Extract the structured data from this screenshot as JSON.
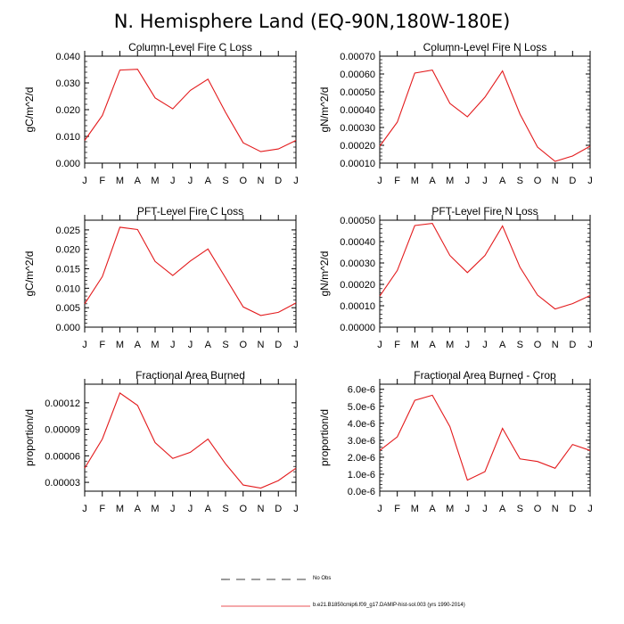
{
  "title": "N. Hemisphere Land (EQ-90N,180W-180E)",
  "months": [
    "J",
    "F",
    "M",
    "A",
    "M",
    "J",
    "J",
    "A",
    "S",
    "O",
    "N",
    "D",
    "J"
  ],
  "line_color": "#e31a1c",
  "chart_data": [
    {
      "type": "line",
      "title": "Column-Level Fire C Loss",
      "ylabel": "gC/m^2/d",
      "ylim": [
        0,
        0.04
      ],
      "yticks": [
        0,
        0.01,
        0.02,
        0.03,
        0.04
      ],
      "ytick_labels": [
        "0.000",
        "0.010",
        "0.020",
        "0.030",
        "0.040"
      ],
      "categories": [
        "J",
        "F",
        "M",
        "A",
        "M",
        "J",
        "J",
        "A",
        "S",
        "O",
        "N",
        "D",
        "J"
      ],
      "values": [
        0.0085,
        0.0178,
        0.0348,
        0.0351,
        0.0244,
        0.0203,
        0.0272,
        0.0314,
        0.019,
        0.0076,
        0.0043,
        0.0053,
        0.0085
      ]
    },
    {
      "type": "line",
      "title": "Column-Level Fire N Loss",
      "ylabel": "gN/m^2/d",
      "ylim": [
        0.0001,
        0.0007
      ],
      "yticks": [
        0.0001,
        0.0002,
        0.0003,
        0.0004,
        0.0005,
        0.0006,
        0.0007
      ],
      "ytick_labels": [
        "0.00010",
        "0.00020",
        "0.00030",
        "0.00040",
        "0.00050",
        "0.00060",
        "0.00070"
      ],
      "categories": [
        "J",
        "F",
        "M",
        "A",
        "M",
        "J",
        "J",
        "A",
        "S",
        "O",
        "N",
        "D",
        "J"
      ],
      "values": [
        0.000195,
        0.00033,
        0.000605,
        0.000622,
        0.000435,
        0.00036,
        0.00047,
        0.000617,
        0.000375,
        0.00019,
        0.00011,
        0.00014,
        0.000195
      ]
    },
    {
      "type": "line",
      "title": "PFT-Level Fire C Loss",
      "ylabel": "gC/m^2/d",
      "ylim": [
        0,
        0.0275
      ],
      "yticks": [
        0,
        0.005,
        0.01,
        0.015,
        0.02,
        0.025
      ],
      "ytick_labels": [
        "0.000",
        "0.005",
        "0.010",
        "0.015",
        "0.020",
        "0.025"
      ],
      "categories": [
        "J",
        "F",
        "M",
        "A",
        "M",
        "J",
        "J",
        "A",
        "S",
        "O",
        "N",
        "D",
        "J"
      ],
      "values": [
        0.006,
        0.013,
        0.0257,
        0.0251,
        0.0169,
        0.0133,
        0.017,
        0.0201,
        0.0127,
        0.0052,
        0.003,
        0.0038,
        0.0062
      ]
    },
    {
      "type": "line",
      "title": "PFT-Level Fire N Loss",
      "ylabel": "gN/m^2/d",
      "ylim": [
        0,
        0.0005
      ],
      "yticks": [
        0,
        0.0001,
        0.0002,
        0.0003,
        0.0004,
        0.0005
      ],
      "ytick_labels": [
        "0.00000",
        "0.00010",
        "0.00020",
        "0.00030",
        "0.00040",
        "0.00050"
      ],
      "categories": [
        "J",
        "F",
        "M",
        "A",
        "M",
        "J",
        "J",
        "A",
        "S",
        "O",
        "N",
        "D",
        "J"
      ],
      "values": [
        0.000145,
        0.000265,
        0.000475,
        0.000485,
        0.000335,
        0.000255,
        0.000335,
        0.000473,
        0.00028,
        0.00015,
        8.5e-05,
        0.00011,
        0.000148
      ]
    },
    {
      "type": "line",
      "title": "Fractional Area Burned",
      "ylabel": "proportion/d",
      "ylim": [
        2e-05,
        0.000141
      ],
      "yticks": [
        3e-05,
        6e-05,
        9e-05,
        0.00012
      ],
      "ytick_labels": [
        "0.00003",
        "0.00006",
        "0.00009",
        "0.00012"
      ],
      "categories": [
        "J",
        "F",
        "M",
        "A",
        "M",
        "J",
        "J",
        "A",
        "S",
        "O",
        "N",
        "D",
        "J"
      ],
      "values": [
        4.6e-05,
        7.9e-05,
        0.000131,
        0.000117,
        7.5e-05,
        5.7e-05,
        6.4e-05,
        7.9e-05,
        5.1e-05,
        2.7e-05,
        2.35e-05,
        3.2e-05,
        4.6e-05
      ]
    },
    {
      "type": "line",
      "title": "Fractional Area Burned - Crop",
      "ylabel": "proportion/d",
      "ylim": [
        0,
        6.3e-06
      ],
      "yticks": [
        0,
        1e-06,
        2e-06,
        3e-06,
        4e-06,
        5e-06,
        6e-06
      ],
      "ytick_labels": [
        "0.0e-6",
        "1.0e-6",
        "2.0e-6",
        "3.0e-6",
        "4.0e-6",
        "5.0e-6",
        "6.0e-6"
      ],
      "categories": [
        "J",
        "F",
        "M",
        "A",
        "M",
        "J",
        "J",
        "A",
        "S",
        "O",
        "N",
        "D",
        "J"
      ],
      "values": [
        2.4e-06,
        3.2e-06,
        5.35e-06,
        5.65e-06,
        3.8e-06,
        6.5e-07,
        1.15e-06,
        3.7e-06,
        1.9e-06,
        1.75e-06,
        1.35e-06,
        2.75e-06,
        2.4e-06
      ]
    }
  ],
  "legend": [
    {
      "label": "No Obs",
      "style": "dashed",
      "color": "#000000"
    },
    {
      "label": "b.e21.B1850cmip6.f09_g17.DAMIP-hist-sol.003 (yrs 1990-2014)",
      "style": "solid",
      "color": "#e31a1c"
    }
  ]
}
